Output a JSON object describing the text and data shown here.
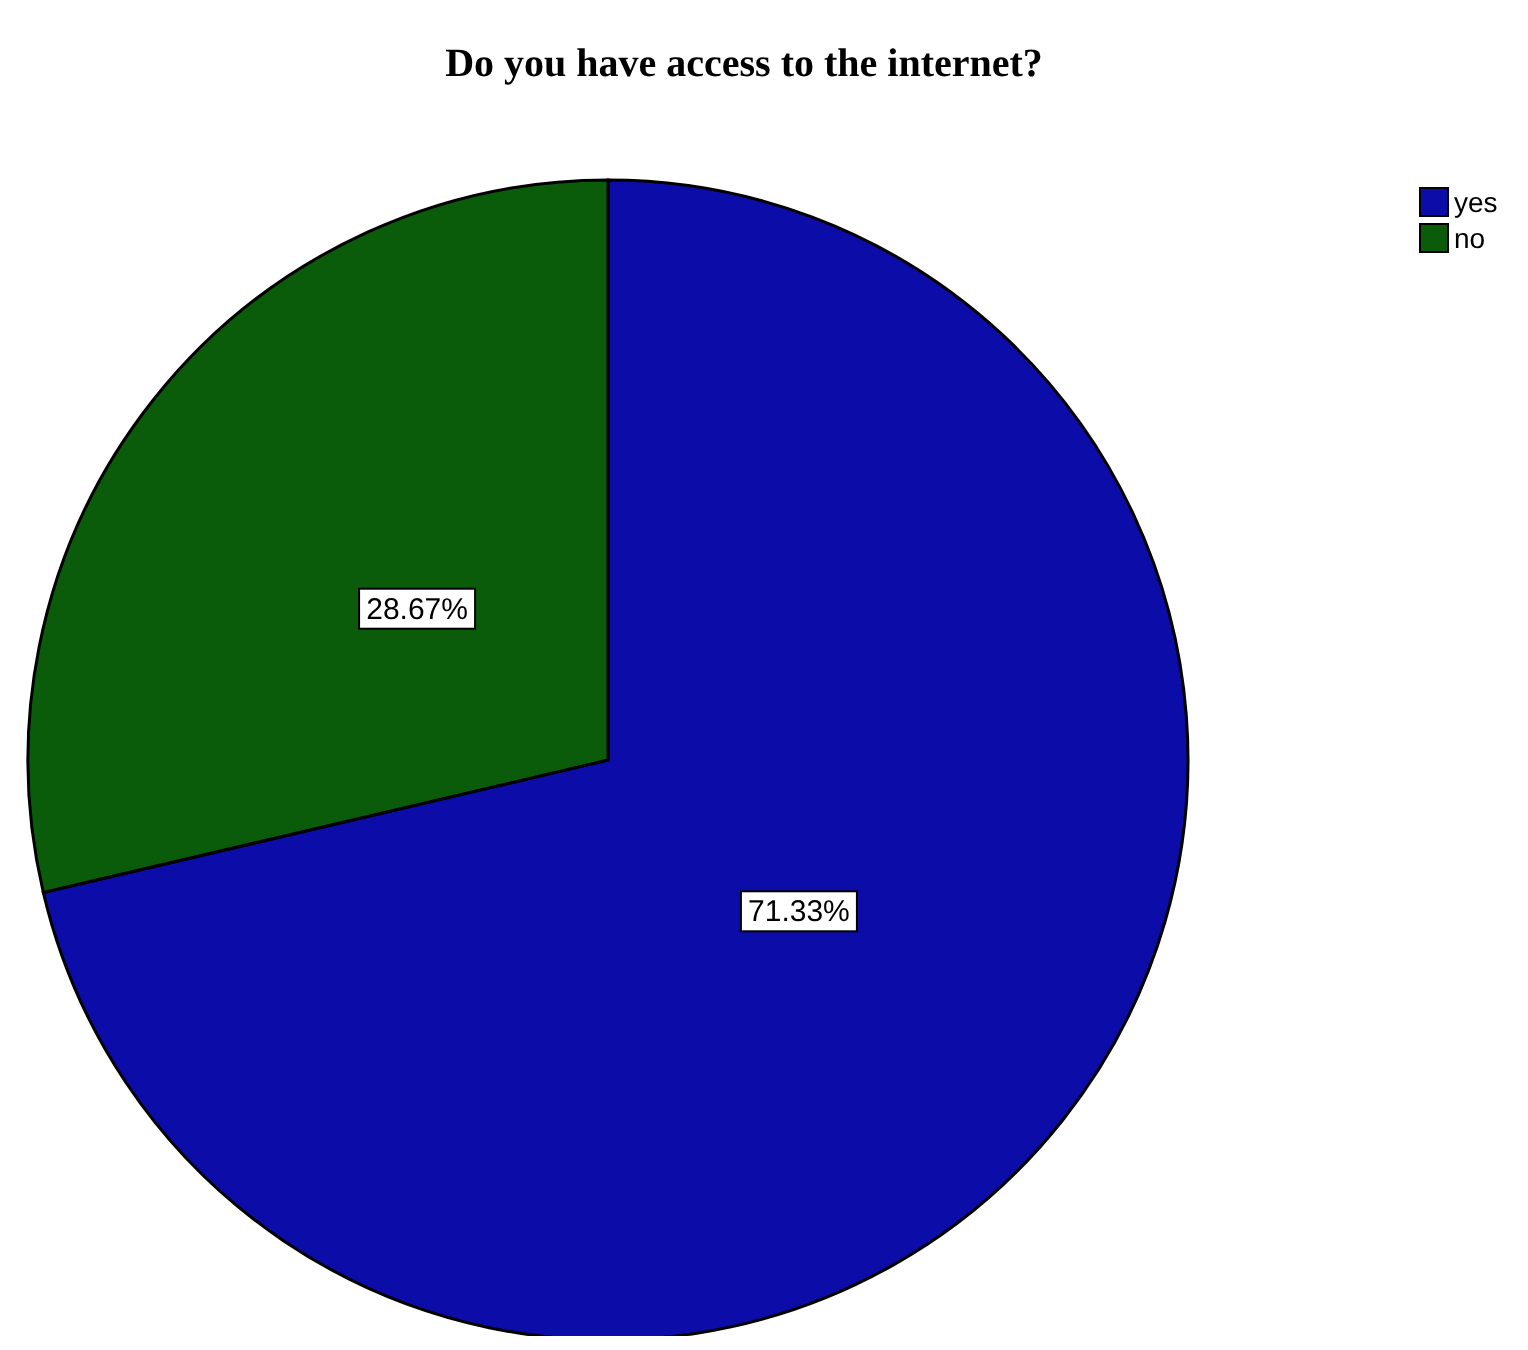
{
  "chart_data": {
    "type": "pie",
    "title": "Do you have access to the internet?",
    "categories": [
      "yes",
      "no"
    ],
    "values": [
      71.33,
      28.67
    ],
    "colors": [
      "#0c0ca8",
      "#0a5c0a"
    ],
    "value_labels": [
      "71.33%",
      "28.67%"
    ],
    "legend": "top right"
  }
}
